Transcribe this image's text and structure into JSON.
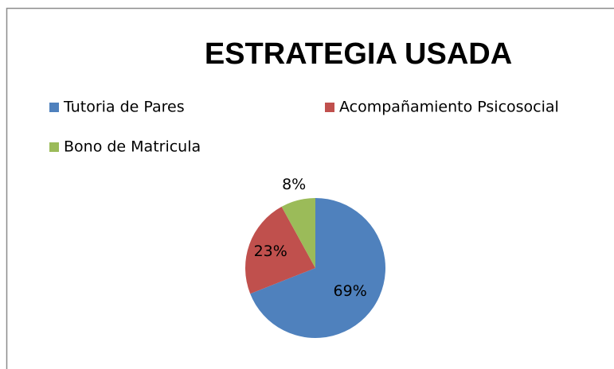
{
  "chart_data": {
    "type": "pie",
    "title": "ESTRATEGIA USADA",
    "categories": [
      "Tutoria de Pares",
      "Acompañamiento Psicosocial",
      "Bono de Matricula"
    ],
    "values": [
      69,
      23,
      8
    ],
    "value_labels": [
      "69%",
      "23%",
      "8%"
    ],
    "colors": [
      "#4f81bd",
      "#c0504d",
      "#9bbb59"
    ],
    "legend": "top"
  }
}
